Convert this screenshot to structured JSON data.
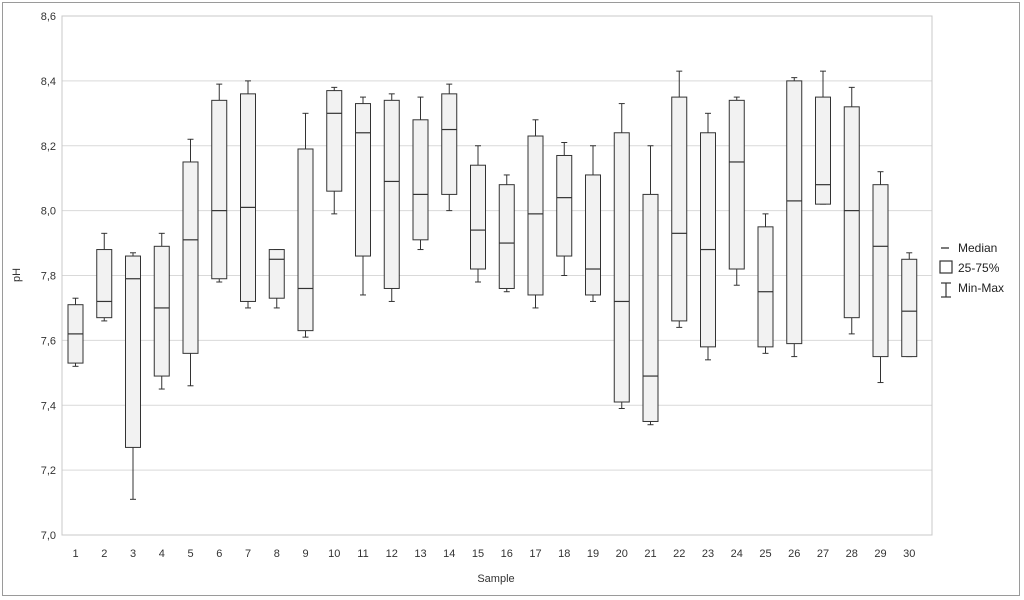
{
  "chart_data": {
    "type": "boxplot",
    "title": "",
    "xlabel": "Sample",
    "ylabel": "pH",
    "ylim": [
      7.0,
      8.6
    ],
    "y_ticks": [
      "7,0",
      "7,2",
      "7,4",
      "7,6",
      "7,8",
      "8,0",
      "8,2",
      "8,4",
      "8,6"
    ],
    "y_tick_values": [
      7.0,
      7.2,
      7.4,
      7.6,
      7.8,
      8.0,
      8.2,
      8.4,
      8.6
    ],
    "grid": true,
    "legend_position": "right",
    "legend": [
      "Median",
      "25-75%",
      "Min-Max"
    ],
    "colors": {
      "box_fill": "#f2f2f2",
      "stroke": "#333333",
      "grid": "#d9d9d9"
    },
    "categories": [
      "1",
      "2",
      "3",
      "4",
      "5",
      "6",
      "7",
      "8",
      "9",
      "10",
      "11",
      "12",
      "13",
      "14",
      "15",
      "16",
      "17",
      "18",
      "19",
      "20",
      "21",
      "22",
      "23",
      "24",
      "25",
      "26",
      "27",
      "28",
      "29",
      "30"
    ],
    "boxes": [
      {
        "min": 7.52,
        "q1": 7.53,
        "median": 7.62,
        "q3": 7.71,
        "max": 7.73
      },
      {
        "min": 7.66,
        "q1": 7.67,
        "median": 7.72,
        "q3": 7.88,
        "max": 7.93
      },
      {
        "min": 7.11,
        "q1": 7.27,
        "median": 7.79,
        "q3": 7.86,
        "max": 7.87
      },
      {
        "min": 7.45,
        "q1": 7.49,
        "median": 7.7,
        "q3": 7.89,
        "max": 7.93
      },
      {
        "min": 7.46,
        "q1": 7.56,
        "median": 7.91,
        "q3": 8.15,
        "max": 8.22
      },
      {
        "min": 7.78,
        "q1": 7.79,
        "median": 8.0,
        "q3": 8.34,
        "max": 8.39
      },
      {
        "min": 7.7,
        "q1": 7.72,
        "median": 8.01,
        "q3": 8.36,
        "max": 8.4
      },
      {
        "min": 7.7,
        "q1": 7.73,
        "median": 7.85,
        "q3": 7.88,
        "max": 7.88
      },
      {
        "min": 7.61,
        "q1": 7.63,
        "median": 7.76,
        "q3": 8.19,
        "max": 8.3
      },
      {
        "min": 7.99,
        "q1": 8.06,
        "median": 8.3,
        "q3": 8.37,
        "max": 8.38
      },
      {
        "min": 7.74,
        "q1": 7.86,
        "median": 8.24,
        "q3": 8.33,
        "max": 8.35
      },
      {
        "min": 7.72,
        "q1": 7.76,
        "median": 8.09,
        "q3": 8.34,
        "max": 8.36
      },
      {
        "min": 7.88,
        "q1": 7.91,
        "median": 8.05,
        "q3": 8.28,
        "max": 8.35
      },
      {
        "min": 8.0,
        "q1": 8.05,
        "median": 8.25,
        "q3": 8.36,
        "max": 8.39
      },
      {
        "min": 7.78,
        "q1": 7.82,
        "median": 7.94,
        "q3": 8.14,
        "max": 8.2
      },
      {
        "min": 7.75,
        "q1": 7.76,
        "median": 7.9,
        "q3": 8.08,
        "max": 8.11
      },
      {
        "min": 7.7,
        "q1": 7.74,
        "median": 7.99,
        "q3": 8.23,
        "max": 8.28
      },
      {
        "min": 7.8,
        "q1": 7.86,
        "median": 8.04,
        "q3": 8.17,
        "max": 8.21
      },
      {
        "min": 7.72,
        "q1": 7.74,
        "median": 7.82,
        "q3": 8.11,
        "max": 8.2
      },
      {
        "min": 7.39,
        "q1": 7.41,
        "median": 7.72,
        "q3": 8.24,
        "max": 8.33
      },
      {
        "min": 7.34,
        "q1": 7.35,
        "median": 7.49,
        "q3": 8.05,
        "max": 8.2
      },
      {
        "min": 7.64,
        "q1": 7.66,
        "median": 7.93,
        "q3": 8.35,
        "max": 8.43
      },
      {
        "min": 7.54,
        "q1": 7.58,
        "median": 7.88,
        "q3": 8.24,
        "max": 8.3
      },
      {
        "min": 7.77,
        "q1": 7.82,
        "median": 8.15,
        "q3": 8.34,
        "max": 8.35
      },
      {
        "min": 7.56,
        "q1": 7.58,
        "median": 7.75,
        "q3": 7.95,
        "max": 7.99
      },
      {
        "min": 7.55,
        "q1": 7.59,
        "median": 8.03,
        "q3": 8.4,
        "max": 8.41
      },
      {
        "min": 8.02,
        "q1": 8.02,
        "median": 8.08,
        "q3": 8.35,
        "max": 8.43
      },
      {
        "min": 7.62,
        "q1": 7.67,
        "median": 8.0,
        "q3": 8.32,
        "max": 8.38
      },
      {
        "min": 7.47,
        "q1": 7.55,
        "median": 7.89,
        "q3": 8.08,
        "max": 8.12
      },
      {
        "min": 7.55,
        "q1": 7.55,
        "median": 7.69,
        "q3": 7.85,
        "max": 7.87
      }
    ]
  }
}
